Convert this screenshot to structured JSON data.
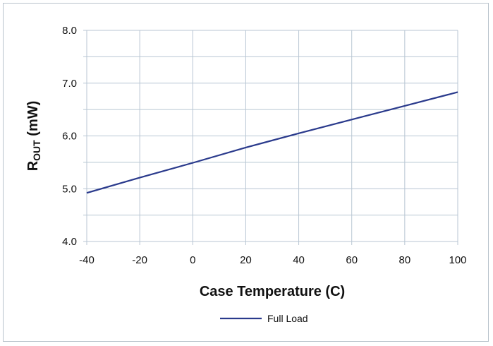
{
  "chart_data": {
    "type": "line",
    "xlabel": "Case Temperature (C)",
    "ylabel": {
      "main": "R",
      "sub": "OUT",
      "rest": " (mW)"
    },
    "xlim": [
      -40,
      100
    ],
    "ylim": [
      4.0,
      8.0
    ],
    "x_ticks": [
      -40,
      -20,
      0,
      20,
      40,
      60,
      80,
      100
    ],
    "x_tick_labels": [
      "-40",
      "-20",
      "0",
      "20",
      "40",
      "60",
      "80",
      "100"
    ],
    "y_ticks": [
      4.0,
      5.0,
      6.0,
      7.0,
      8.0
    ],
    "y_tick_labels": [
      "4.0",
      "5.0",
      "6.0",
      "7.0",
      "8.0"
    ],
    "y_minor_step": 0.5,
    "grid": true,
    "legend_position": "bottom-center",
    "series": [
      {
        "name": "Full Load",
        "color": "#2a3a8c",
        "x": [
          -40,
          -20,
          0,
          20,
          40,
          60,
          80,
          100
        ],
        "y": [
          4.92,
          5.21,
          5.49,
          5.78,
          6.05,
          6.31,
          6.57,
          6.83
        ]
      }
    ]
  }
}
